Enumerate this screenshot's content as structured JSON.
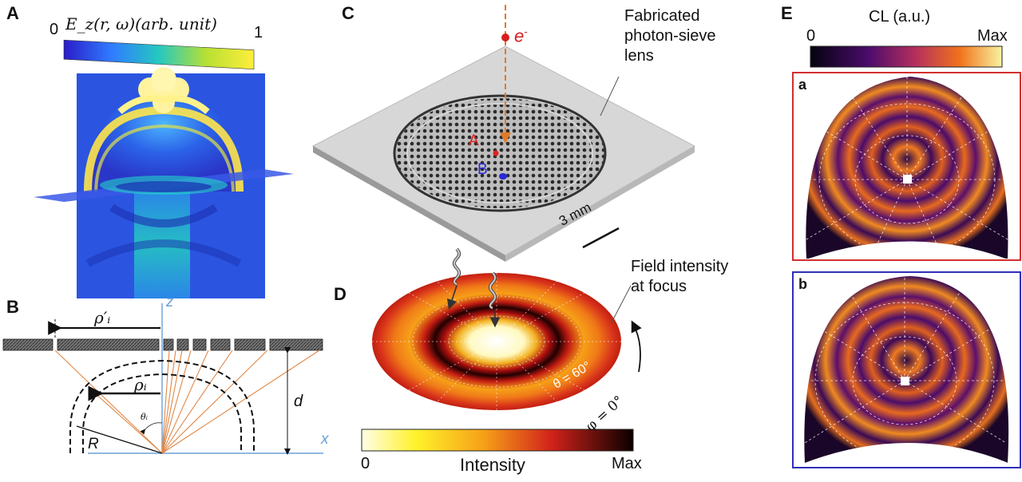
{
  "panels": {
    "A": {
      "letter": "A",
      "colorbar": {
        "title": "E_z(r, ω)(arb. unit)",
        "min": "0",
        "max": "1"
      }
    },
    "B": {
      "letter": "B",
      "labels": {
        "rho_prime": "ρ′ᵢ",
        "rho": "ρᵢ",
        "theta": "θᵢ",
        "R": "R",
        "d": "d",
        "z": "z",
        "x": "x"
      }
    },
    "C": {
      "letter": "C",
      "electron": "e",
      "electron_sup": "-",
      "point_a": "A",
      "point_b": "B",
      "lens_annotation": [
        "Fabricated",
        "photon-sieve",
        "lens"
      ],
      "scale_bar": "3 mm"
    },
    "D": {
      "letter": "D",
      "field_annotation": [
        "Field intensity",
        "at focus"
      ],
      "theta_label": "θ = 60°",
      "phi_label": "φ = 0°",
      "colorbar": {
        "title": "Intensity",
        "min": "0",
        "max": "Max"
      }
    },
    "E": {
      "letter": "E",
      "colorbar": {
        "title": "CL (a.u.)",
        "min": "0",
        "max": "Max"
      },
      "sub_a": "a",
      "sub_b": "b",
      "frame_a_color": "#d32f2f",
      "frame_b_color": "#2f2fb8"
    }
  }
}
